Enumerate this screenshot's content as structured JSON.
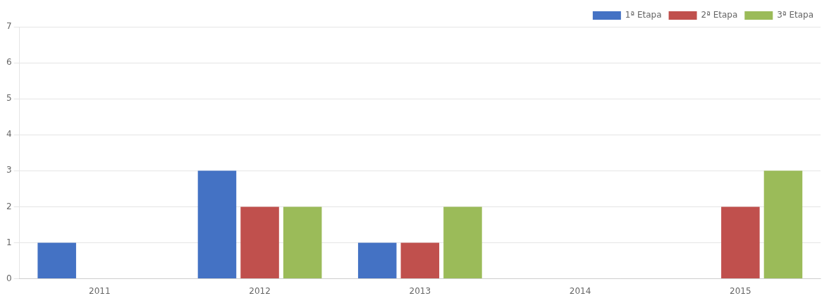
{
  "chart_data": {
    "type": "bar",
    "categories": [
      "2011",
      "2012",
      "2013",
      "2014",
      "2015"
    ],
    "series": [
      {
        "name": "1ª Etapa",
        "color": "#4472C4",
        "values": [
          1,
          3,
          1,
          0,
          0
        ]
      },
      {
        "name": "2ª Etapa",
        "color": "#C0504D",
        "values": [
          0,
          2,
          1,
          0,
          2
        ]
      },
      {
        "name": "3ª Etapa",
        "color": "#9BBB59",
        "values": [
          0,
          2,
          2,
          0,
          3
        ]
      }
    ],
    "ylim": [
      0,
      7
    ],
    "yticks": [
      0,
      1,
      2,
      3,
      4,
      5,
      6,
      7
    ],
    "grid": true,
    "legend": "upper right"
  }
}
